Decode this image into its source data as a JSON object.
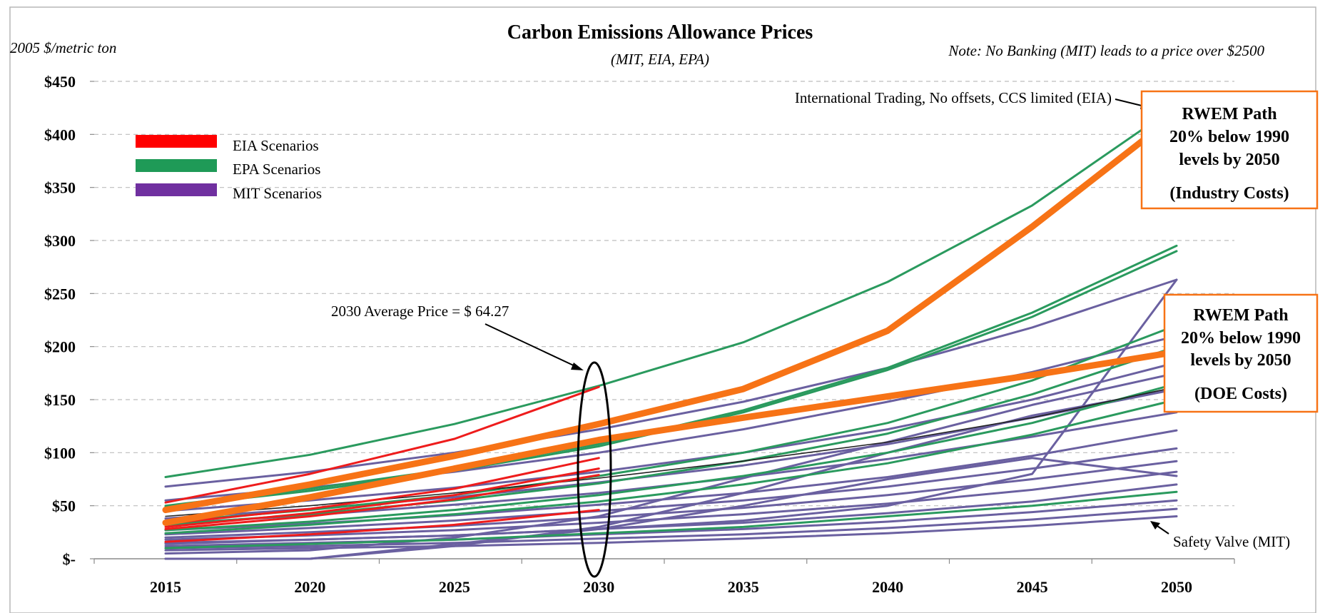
{
  "chart_data": {
    "type": "line",
    "title": "Carbon Emissions Allowance Prices",
    "subtitle": "(MIT, EIA, EPA)",
    "ylabel": "2005 $/metric ton",
    "note": "Note: No Banking (MIT) leads to a price over $2500",
    "xlim": [
      2015,
      2050
    ],
    "ylim": [
      0,
      450
    ],
    "x_ticks": [
      "2015",
      "2020",
      "2025",
      "2030",
      "2035",
      "2040",
      "2045",
      "2050"
    ],
    "y_ticks": [
      {
        "value": 0,
        "label": "$-"
      },
      {
        "value": 50,
        "label": "$50"
      },
      {
        "value": 100,
        "label": "$100"
      },
      {
        "value": 150,
        "label": "$150"
      },
      {
        "value": 200,
        "label": "$200"
      },
      {
        "value": 250,
        "label": "$250"
      },
      {
        "value": 300,
        "label": "$300"
      },
      {
        "value": 350,
        "label": "$350"
      },
      {
        "value": 400,
        "label": "$400"
      },
      {
        "value": 450,
        "label": "$450"
      }
    ],
    "grid": true,
    "legend": [
      {
        "label": "EIA Scenarios",
        "color": "#ff0000"
      },
      {
        "label": "EPA Scenarios",
        "color": "#1f9a57"
      },
      {
        "label": "MIT Scenarios",
        "color": "#7030a0"
      }
    ],
    "colors": {
      "EIA": "#ee1c1c",
      "EPA": "#2a9a5e",
      "MIT": "#6a60a0",
      "RWEM": "#f77316",
      "black": "#222222"
    },
    "series": [
      {
        "group": "EPA",
        "x": [
          2015,
          2020,
          2025,
          2030,
          2035,
          2040,
          2045,
          2050
        ],
        "values": [
          77,
          98,
          127,
          163,
          204,
          261,
          333,
          427
        ]
      },
      {
        "group": "EPA",
        "x": [
          2015,
          2020,
          2025,
          2030,
          2035,
          2040,
          2045,
          2050
        ],
        "values": [
          50,
          66,
          85,
          108,
          140,
          180,
          232,
          295
        ]
      },
      {
        "group": "EPA",
        "x": [
          2015,
          2020,
          2025,
          2030,
          2035,
          2040,
          2045,
          2050
        ],
        "values": [
          49,
          64,
          83,
          106,
          138,
          178,
          228,
          290
        ]
      },
      {
        "group": "EPA",
        "x": [
          2015,
          2020,
          2025,
          2030,
          2035,
          2040,
          2045,
          2050
        ],
        "values": [
          35,
          46,
          60,
          78,
          100,
          128,
          168,
          220
        ]
      },
      {
        "group": "EPA",
        "x": [
          2015,
          2020,
          2025,
          2030,
          2035,
          2040,
          2045,
          2050
        ],
        "values": [
          32,
          42,
          55,
          71,
          92,
          118,
          155,
          200
        ]
      },
      {
        "group": "EPA",
        "x": [
          2015,
          2020,
          2025,
          2030,
          2035,
          2040,
          2045,
          2050
        ],
        "values": [
          27,
          35,
          46,
          60,
          78,
          100,
          128,
          165
        ]
      },
      {
        "group": "EPA",
        "x": [
          2015,
          2020,
          2025,
          2030,
          2035,
          2040,
          2045,
          2050
        ],
        "values": [
          24,
          32,
          42,
          54,
          70,
          90,
          117,
          150
        ]
      },
      {
        "group": "EPA",
        "x": [
          2015,
          2020,
          2025,
          2030,
          2035,
          2040,
          2045,
          2050
        ],
        "values": [
          10,
          14,
          18,
          24,
          30,
          40,
          50,
          63
        ]
      },
      {
        "group": "EIA",
        "x": [
          2015,
          2020,
          2025,
          2030
        ],
        "values": [
          53,
          80,
          113,
          162
        ]
      },
      {
        "group": "EIA",
        "x": [
          2015,
          2020,
          2025,
          2030
        ],
        "values": [
          33,
          47,
          66,
          95
        ]
      },
      {
        "group": "EIA",
        "x": [
          2015,
          2020,
          2025,
          2030
        ],
        "values": [
          30,
          43,
          60,
          85
        ]
      },
      {
        "group": "EIA",
        "x": [
          2015,
          2020,
          2025,
          2030
        ],
        "values": [
          28,
          40,
          56,
          79
        ]
      },
      {
        "group": "EIA",
        "x": [
          2015,
          2020,
          2025,
          2030
        ],
        "values": [
          16,
          23,
          32,
          46
        ]
      },
      {
        "group": "MIT",
        "x": [
          2015,
          2020,
          2025,
          2030,
          2035,
          2040,
          2045,
          2050
        ],
        "values": [
          68,
          82,
          100,
          122,
          148,
          180,
          218,
          263
        ]
      },
      {
        "group": "MIT",
        "x": [
          2015,
          2020,
          2025,
          2030,
          2035,
          2040,
          2045,
          2050
        ],
        "values": [
          55,
          67,
          82,
          100,
          122,
          148,
          176,
          210
        ]
      },
      {
        "group": "MIT",
        "x": [
          2015,
          2020,
          2025,
          2030,
          2035,
          2040,
          2045,
          2050
        ],
        "values": [
          45,
          55,
          67,
          82,
          100,
          122,
          150,
          185
        ]
      },
      {
        "group": "MIT",
        "x": [
          2015,
          2020,
          2025,
          2030,
          2035,
          2040,
          2045,
          2050
        ],
        "values": [
          38,
          47,
          58,
          72,
          88,
          108,
          133,
          160
        ]
      },
      {
        "group": "MIT",
        "x": [
          2015,
          2020,
          2025,
          2030,
          2035,
          2040,
          2045,
          2050
        ],
        "values": [
          33,
          41,
          51,
          62,
          77,
          94,
          115,
          138
        ]
      },
      {
        "group": "MIT",
        "x": [
          2015,
          2020,
          2025,
          2030,
          2035,
          2040,
          2045,
          2050
        ],
        "values": [
          27,
          33,
          41,
          51,
          62,
          77,
          97,
          121
        ]
      },
      {
        "group": "MIT",
        "x": [
          2015,
          2020,
          2025,
          2030,
          2035,
          2040,
          2045,
          2050
        ],
        "values": [
          23,
          29,
          36,
          45,
          55,
          68,
          85,
          104
        ]
      },
      {
        "group": "MIT",
        "x": [
          2015,
          2020,
          2025,
          2030,
          2035,
          2040,
          2045,
          2050
        ],
        "values": [
          20,
          25,
          31,
          39,
          48,
          60,
          75,
          92
        ]
      },
      {
        "group": "MIT",
        "x": [
          2015,
          2020,
          2025,
          2030,
          2035,
          2040,
          2045,
          2050
        ],
        "values": [
          18,
          22,
          27,
          34,
          42,
          52,
          65,
          82
        ]
      },
      {
        "group": "MIT",
        "x": [
          2015,
          2020,
          2025,
          2030,
          2035,
          2040,
          2045,
          2050
        ],
        "values": [
          14,
          18,
          22,
          28,
          34,
          43,
          54,
          70
        ]
      },
      {
        "group": "MIT",
        "x": [
          2015,
          2020,
          2025,
          2030,
          2035,
          2040,
          2045,
          2050
        ],
        "values": [
          12,
          15,
          18,
          23,
          28,
          35,
          44,
          55
        ]
      },
      {
        "group": "MIT",
        "x": [
          2015,
          2020,
          2025,
          2030,
          2035,
          2040,
          2045,
          2050
        ],
        "values": [
          10,
          12,
          15,
          19,
          23,
          29,
          37,
          47
        ]
      },
      {
        "group": "MIT",
        "x": [
          2015,
          2020,
          2025,
          2030,
          2035,
          2040,
          2045,
          2050
        ],
        "values": [
          8,
          10,
          12,
          15,
          19,
          24,
          31,
          40
        ]
      },
      {
        "group": "MIT",
        "x": [
          2015,
          2020,
          2025,
          2030,
          2035,
          2040,
          2045,
          2050
        ],
        "values": [
          0,
          0,
          12,
          30,
          62,
          100,
          135,
          160
        ]
      },
      {
        "group": "MIT",
        "x": [
          2015,
          2020,
          2025,
          2030,
          2035,
          2040,
          2045,
          2050
        ],
        "values": [
          5,
          8,
          20,
          40,
          76,
          110,
          145,
          175
        ]
      },
      {
        "group": "MIT",
        "x": [
          2015,
          2020,
          2025,
          2030,
          2035,
          2040,
          2045,
          2050
        ],
        "values": [
          0,
          0,
          14,
          28,
          50,
          75,
          95,
          78
        ]
      },
      {
        "group": "MIT",
        "x": [
          2015,
          2020,
          2025,
          2030,
          2035,
          2040,
          2045,
          2050
        ],
        "values": [
          15,
          18,
          22,
          28,
          36,
          50,
          80,
          263
        ]
      },
      {
        "group": "black",
        "x": [
          2015,
          2020,
          2025,
          2030,
          2035,
          2040,
          2045,
          2050
        ],
        "values": [
          40,
          50,
          62,
          76,
          92,
          110,
          133,
          162
        ]
      },
      {
        "group": "RWEM",
        "name": "RWEM Path (Industry Costs)",
        "x": [
          2015,
          2020,
          2025,
          2030,
          2035,
          2040,
          2045,
          2050
        ],
        "values": [
          46,
          70,
          97,
          127,
          160,
          215,
          313,
          419
        ]
      },
      {
        "group": "RWEM",
        "name": "RWEM Path (DOE Costs)",
        "x": [
          2015,
          2020,
          2025,
          2030,
          2035,
          2040,
          2045,
          2050
        ],
        "values": [
          34,
          58,
          85,
          112,
          133,
          153,
          173,
          195
        ]
      }
    ],
    "annotations": {
      "eia_top": "International Trading, No offsets, CCS limited (EIA)",
      "safety_valve": "Safety Valve (MIT)",
      "avg_price": "2030 Average Price = $ 64.27"
    },
    "boxes": {
      "industry": {
        "lines": [
          "RWEM Path",
          "20% below 1990",
          "levels by 2050",
          "(Industry Costs)"
        ],
        "border": "#f77316"
      },
      "doe": {
        "lines": [
          "RWEM Path",
          "20% below 1990",
          "levels by 2050",
          "(DOE Costs)"
        ],
        "border": "#f77316"
      }
    }
  }
}
